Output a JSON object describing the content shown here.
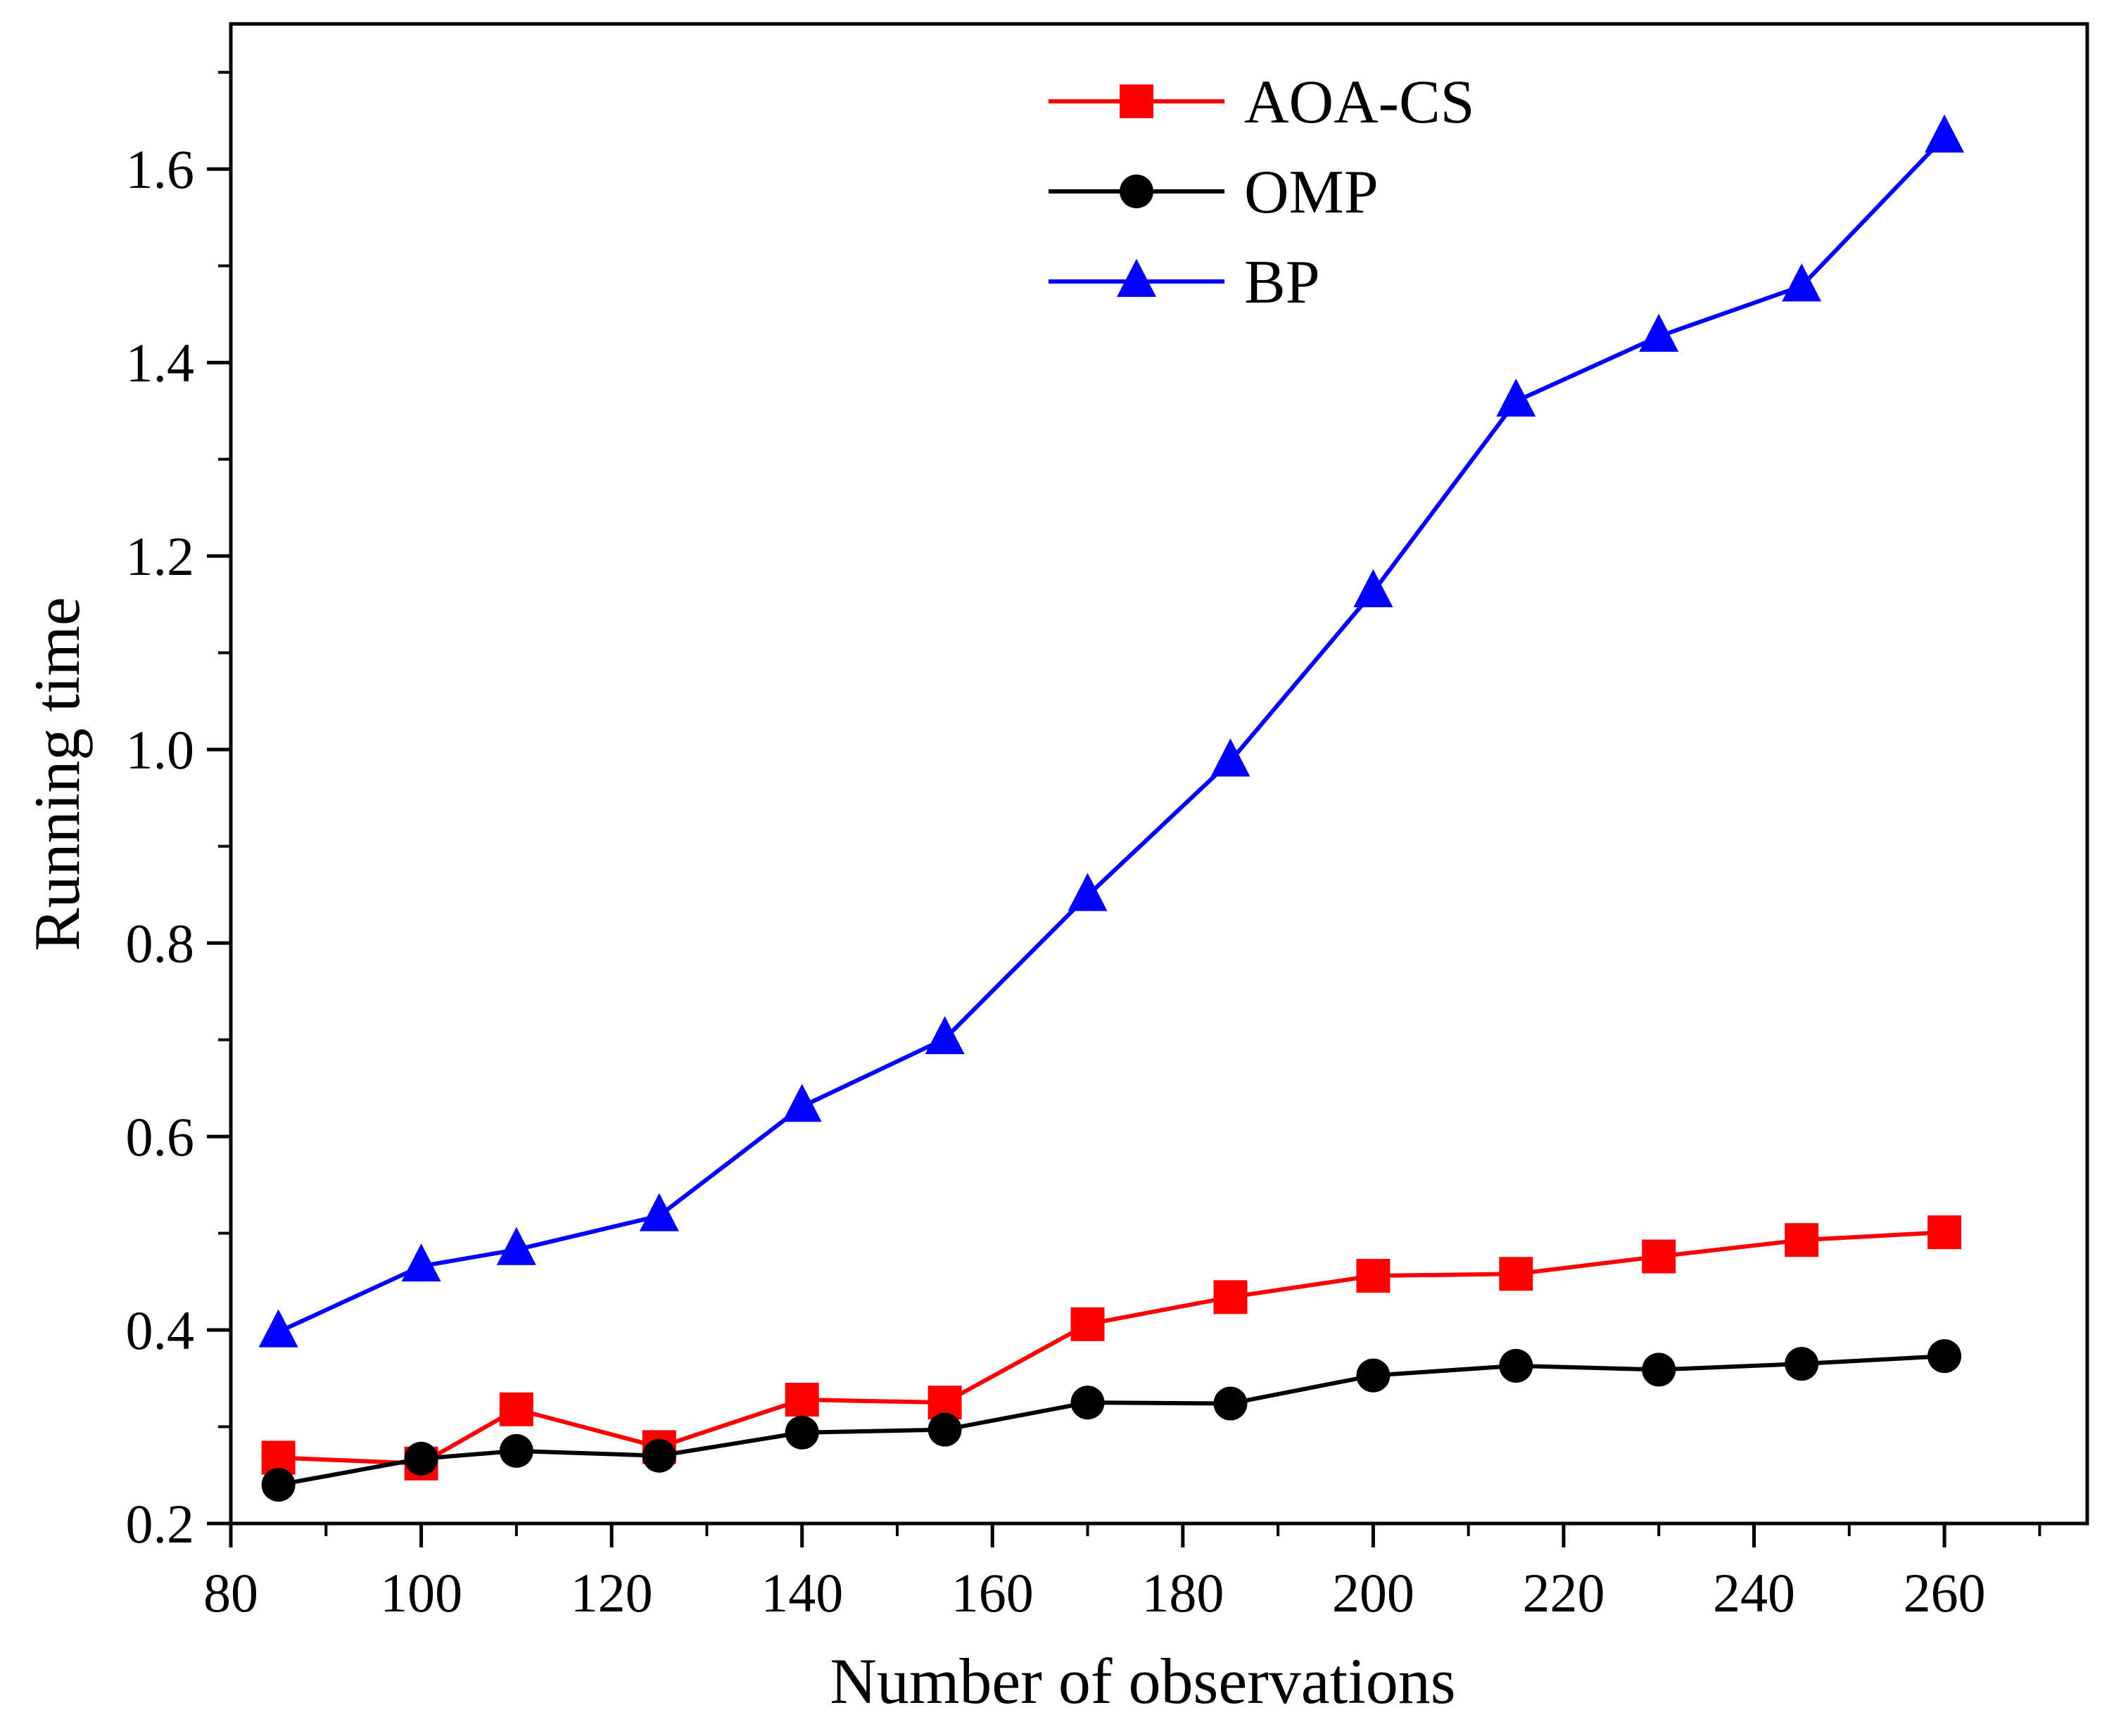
{
  "chart_data": {
    "type": "line",
    "title": "",
    "xlabel": "Number of observations",
    "ylabel": "Running time",
    "xlim": [
      80,
      275
    ],
    "ylim": [
      0.2,
      1.75
    ],
    "xticks": [
      80,
      100,
      120,
      140,
      160,
      180,
      200,
      220,
      240,
      260
    ],
    "xtick_labels": [
      "80",
      "100",
      "120",
      "140",
      "160",
      "180",
      "200",
      "220",
      "240",
      "260"
    ],
    "yticks": [
      0.2,
      0.4,
      0.6,
      0.8,
      1.0,
      1.2,
      1.4,
      1.6
    ],
    "ytick_labels": [
      "0.2",
      "0.4",
      "0.6",
      "0.8",
      "1.0",
      "1.2",
      "1.4",
      "1.6"
    ],
    "x": [
      85,
      100,
      110,
      125,
      140,
      155,
      170,
      185,
      200,
      215,
      230,
      245,
      260
    ],
    "grid": false,
    "legend_position": "top-center",
    "series": [
      {
        "name": "AOA-CS",
        "color": "#ff0000",
        "marker": "square",
        "values": [
          0.268,
          0.262,
          0.318,
          0.279,
          0.328,
          0.325,
          0.406,
          0.434,
          0.456,
          0.458,
          0.476,
          0.493,
          0.501
        ]
      },
      {
        "name": "OMP",
        "color": "#000000",
        "marker": "circle",
        "values": [
          0.24,
          0.267,
          0.275,
          0.27,
          0.294,
          0.297,
          0.325,
          0.324,
          0.353,
          0.363,
          0.359,
          0.365,
          0.373
        ]
      },
      {
        "name": "BP",
        "color": "#0000ff",
        "marker": "triangle",
        "values": [
          0.398,
          0.466,
          0.483,
          0.518,
          0.631,
          0.701,
          0.849,
          0.988,
          1.163,
          1.36,
          1.427,
          1.479,
          1.633
        ]
      }
    ]
  }
}
